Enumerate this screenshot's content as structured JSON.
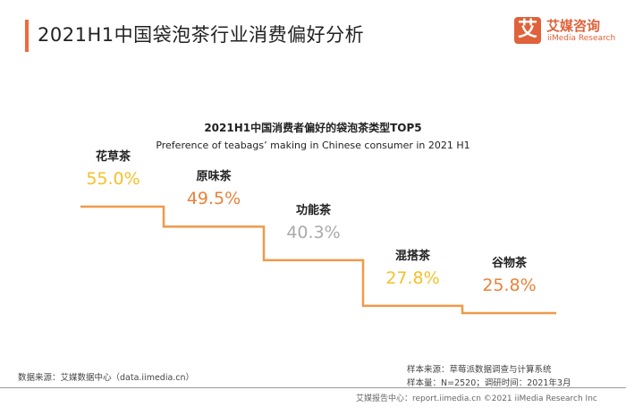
{
  "header": {
    "title": "2021H1中国袋泡茶行业消费偏好分析",
    "logo_mark": "艾",
    "logo_cn": "艾媒咨询",
    "logo_en": "iiMedia Research"
  },
  "chart_data": {
    "type": "line",
    "style": "step",
    "title": "2021H1中国消费者偏好的袋泡茶类型TOP5",
    "subtitle": "Preference of teabags’ making in Chinese consumer in 2021 H1",
    "categories": [
      "花草茶",
      "原味茶",
      "功能茶",
      "混搭茶",
      "谷物茶"
    ],
    "values": [
      55.0,
      49.5,
      40.3,
      27.8,
      25.8
    ],
    "labels": [
      "55.0%",
      "49.5%",
      "40.3%",
      "27.8%",
      "25.8%"
    ],
    "label_colors": [
      "#f5c02a",
      "#e8823a",
      "#aaaaaa",
      "#f5c02a",
      "#e8823a"
    ],
    "line_color": "#ee9a4a"
  },
  "footer": {
    "source": "数据来源：艾媒数据中心（data.iimedia.cn）",
    "sample_source": "样本来源：草莓派数据调查与计算系统",
    "sample_size": "样本量：N=2520；调研时间：2021年3月",
    "copyright": "艾媒报告中心：report.iimedia.cn  ©2021  iiMedia Research  Inc"
  }
}
